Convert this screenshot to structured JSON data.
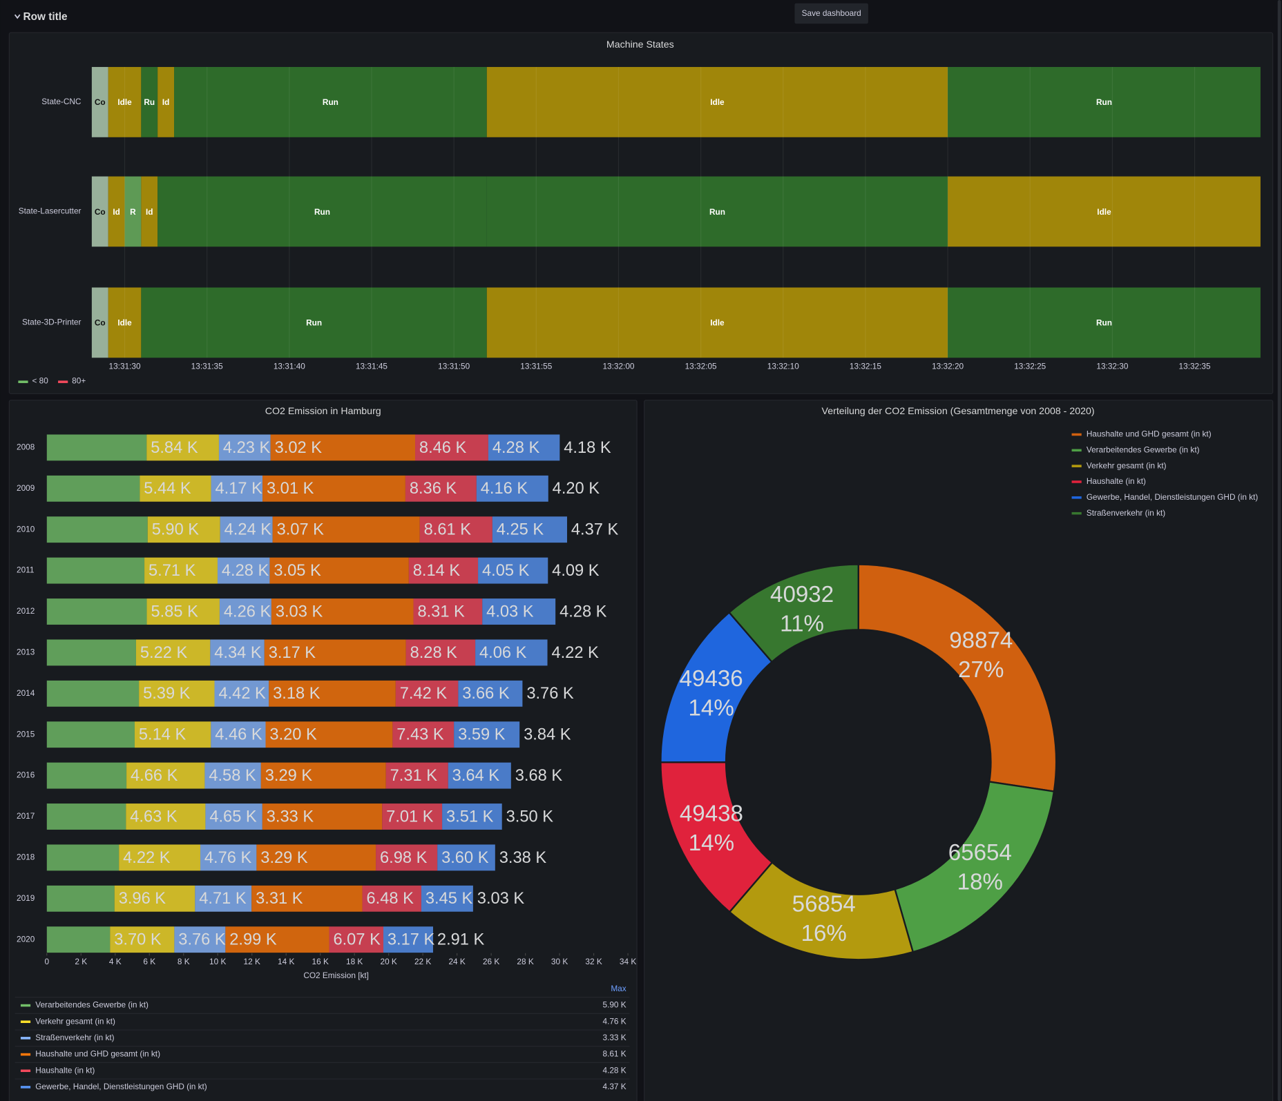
{
  "header": {
    "row_title": "Row title",
    "tooltip": "Save dashboard"
  },
  "chart_data": [
    {
      "type": "timeline",
      "title": "Machine States",
      "rows": [
        {
          "name": "State-CNC",
          "labels": [
            "Co",
            "Idle",
            "Ru",
            "Id",
            "Run",
            "Idle",
            "Run"
          ],
          "colors": [
            "#98b09a",
            "#a0860a",
            "#2e6b2a",
            "#a0860a",
            "#2e6b2a",
            "#a0860a",
            "#2e6b2a"
          ],
          "times": [
            48688,
            48689,
            48691,
            48692,
            48693,
            48712,
            48740,
            48759
          ]
        },
        {
          "name": "State-Lasercutter",
          "labels": [
            "Co",
            "Id",
            "R",
            "Id",
            "Run",
            "Run",
            "Idle"
          ],
          "colors": [
            "#98b09a",
            "#a0860a",
            "#5e9a55",
            "#a0860a",
            "#2e6b2a",
            "#2e6b2a",
            "#a0860a"
          ],
          "times": [
            48688,
            48689,
            48690,
            48691,
            48692,
            48712,
            48740,
            48759
          ]
        },
        {
          "name": "State-3D-Printer",
          "labels": [
            "Co",
            "Idle",
            "Run",
            "Idle",
            "Run"
          ],
          "colors": [
            "#98b09a",
            "#a0860a",
            "#2e6b2a",
            "#a0860a",
            "#2e6b2a"
          ],
          "times": [
            48688,
            48689,
            48691,
            48712,
            48740,
            48759
          ]
        }
      ],
      "xlim": [
        48688,
        48759
      ],
      "xticks": [
        {
          "value": 48690,
          "label": "13:31:30"
        },
        {
          "value": 48695,
          "label": "13:31:35"
        },
        {
          "value": 48700,
          "label": "13:31:40"
        },
        {
          "value": 48705,
          "label": "13:31:45"
        },
        {
          "value": 48710,
          "label": "13:31:50"
        },
        {
          "value": 48715,
          "label": "13:31:55"
        },
        {
          "value": 48720,
          "label": "13:32:00"
        },
        {
          "value": 48725,
          "label": "13:32:05"
        },
        {
          "value": 48730,
          "label": "13:32:10"
        },
        {
          "value": 48735,
          "label": "13:32:15"
        },
        {
          "value": 48740,
          "label": "13:32:20"
        },
        {
          "value": 48745,
          "label": "13:32:25"
        },
        {
          "value": 48750,
          "label": "13:32:30"
        },
        {
          "value": 48755,
          "label": "13:32:35"
        }
      ],
      "grid": true,
      "legend": [
        {
          "name": "< 80",
          "color": "#73bf69"
        },
        {
          "name": "80+",
          "color": "#f2495c"
        }
      ]
    },
    {
      "type": "barh",
      "title": "CO2 Emission in Hamburg",
      "x_label": "CO2 Emission [kt]",
      "categories": [
        "2008",
        "2009",
        "2010",
        "2011",
        "2012",
        "2013",
        "2014",
        "2015",
        "2016",
        "2017",
        "2018",
        "2019",
        "2020"
      ],
      "series": [
        {
          "name": "Verarbeitendes Gewerbe (in kt)",
          "color": "#73bf69",
          "values": [
            5840,
            5440,
            5900,
            5710,
            5850,
            5220,
            5390,
            5140,
            4660,
            4630,
            4220,
            3960,
            3700
          ],
          "value_labels": [
            "5.84 K",
            "5.44 K",
            "5.90 K",
            "5.71 K",
            "5.85 K",
            "5.22 K",
            "5.39 K",
            "5.14 K",
            "4.66 K",
            "4.63 K",
            "4.22 K",
            "3.96 K",
            "3.70 K"
          ],
          "max": {
            "value": 5900,
            "label": "5.90 K"
          }
        },
        {
          "name": "Verkehr gesamt (in kt)",
          "color": "#fade2a",
          "values": [
            4230,
            4170,
            4240,
            4280,
            4260,
            4340,
            4420,
            4460,
            4580,
            4650,
            4760,
            4710,
            3760
          ],
          "value_labels": [
            "4.23 K",
            "4.17 K",
            "4.24 K",
            "4.28 K",
            "4.26 K",
            "4.34 K",
            "4.42 K",
            "4.46 K",
            "4.58 K",
            "4.65 K",
            "4.76 K",
            "4.71 K",
            "3.76 K"
          ],
          "max": {
            "value": 4760,
            "label": "4.76 K"
          }
        },
        {
          "name": "Straßenverkehr (in kt)",
          "color": "#8ab8ff",
          "values": [
            3020,
            3010,
            3070,
            3050,
            3030,
            3170,
            3180,
            3200,
            3290,
            3330,
            3290,
            3310,
            2990
          ],
          "value_labels": [
            "3.02 K",
            "3.01 K",
            "3.07 K",
            "3.05 K",
            "3.03 K",
            "3.17 K",
            "3.18 K",
            "3.20 K",
            "3.29 K",
            "3.33 K",
            "3.29 K",
            "3.31 K",
            "2.99 K"
          ],
          "max": {
            "value": 3330,
            "label": "3.33 K"
          }
        },
        {
          "name": "Haushalte und GHD gesamt (in kt)",
          "color": "#ff780a",
          "values": [
            8460,
            8360,
            8610,
            8140,
            8310,
            8280,
            7420,
            7430,
            7310,
            7010,
            6980,
            6480,
            6070
          ],
          "value_labels": [
            "8.46 K",
            "8.36 K",
            "8.61 K",
            "8.14 K",
            "8.31 K",
            "8.28 K",
            "7.42 K",
            "7.43 K",
            "7.31 K",
            "7.01 K",
            "6.98 K",
            "6.48 K",
            "6.07 K"
          ],
          "max": {
            "value": 8610,
            "label": "8.61 K"
          }
        },
        {
          "name": "Haushalte (in kt)",
          "color": "#f2495c",
          "values": [
            4280,
            4160,
            4250,
            4050,
            4030,
            4060,
            3660,
            3590,
            3640,
            3510,
            3600,
            3450,
            3170
          ],
          "value_labels": [
            "4.28 K",
            "4.16 K",
            "4.25 K",
            "4.05 K",
            "4.03 K",
            "4.06 K",
            "3.66 K",
            "3.59 K",
            "3.64 K",
            "3.51 K",
            "3.60 K",
            "3.45 K",
            "3.17 K"
          ],
          "max": {
            "value": 4280,
            "label": "4.28 K"
          }
        },
        {
          "name": "Gewerbe, Handel, Dienstleistungen GHD (in kt)",
          "color": "#5794f2",
          "values": [
            4180,
            4200,
            4370,
            4090,
            4280,
            4220,
            3760,
            3840,
            3680,
            3500,
            3380,
            3030,
            2910
          ],
          "value_labels": [
            "4.18 K",
            "4.20 K",
            "4.37 K",
            "4.09 K",
            "4.28 K",
            "4.22 K",
            "3.76 K",
            "3.84 K",
            "3.68 K",
            "3.50 K",
            "3.38 K",
            "3.03 K",
            "2.91 K"
          ],
          "max": {
            "value": 4370,
            "label": "4.37 K"
          }
        }
      ],
      "xlim": [
        0,
        34000
      ],
      "xticks": [
        0,
        {
          "value": 2000,
          "label": "2 K"
        },
        {
          "value": 4000,
          "label": "4 K"
        },
        {
          "value": 6000,
          "label": "6 K"
        },
        {
          "value": 8000,
          "label": "8 K"
        },
        {
          "value": 10000,
          "label": "10 K"
        },
        {
          "value": 12000,
          "label": "12 K"
        },
        {
          "value": 14000,
          "label": "14 K"
        },
        {
          "value": 16000,
          "label": "16 K"
        },
        {
          "value": 18000,
          "label": "18 K"
        },
        {
          "value": 20000,
          "label": "20 K"
        },
        {
          "value": 22000,
          "label": "22 K"
        },
        {
          "value": 24000,
          "label": "24 K"
        },
        {
          "value": 26000,
          "label": "26 K"
        },
        {
          "value": 28000,
          "label": "28 K"
        },
        {
          "value": 30000,
          "label": "30 K"
        },
        {
          "value": 32000,
          "label": "32 K"
        },
        {
          "value": 34000,
          "label": "34 K"
        }
      ],
      "legend_header": "Max"
    },
    {
      "type": "donut",
      "title": "Verteilung der CO2 Emission (Gesamtmenge von 2008 - 2020)",
      "series": [
        {
          "name": "Haushalte und GHD gesamt (in kt)",
          "color": "#d0600f",
          "value": 98874,
          "percent_label": "27%"
        },
        {
          "name": "Verarbeitendes Gewerbe (in kt)",
          "color": "#4e9f45",
          "value": 65654,
          "percent_label": "18%"
        },
        {
          "name": "Verkehr gesamt (in kt)",
          "color": "#b39a0e",
          "value": 56854,
          "percent_label": "16%"
        },
        {
          "name": "Haushalte (in kt)",
          "color": "#e0223c",
          "value": 49438,
          "percent_label": "14%"
        },
        {
          "name": "Gewerbe, Handel, Dienstleistungen GHD (in kt)",
          "color": "#1f66de",
          "value": 49436,
          "percent_label": "14%"
        },
        {
          "name": "Straßenverkehr (in kt)",
          "color": "#37772f",
          "value": 40932,
          "percent_label": "11%"
        }
      ]
    }
  ]
}
